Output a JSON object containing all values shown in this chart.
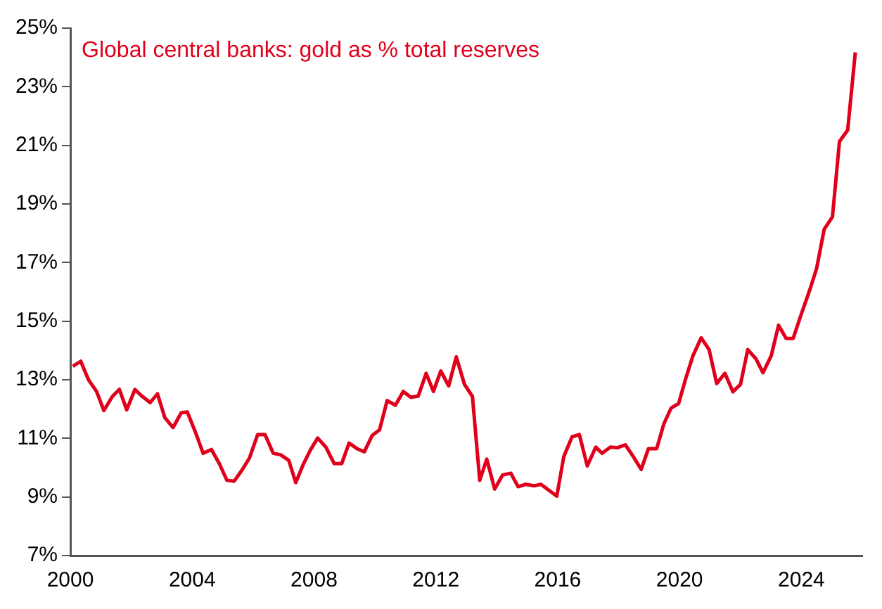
{
  "chart_data": {
    "type": "line",
    "title": "Global central banks: gold as % total reserves",
    "x": [
      2000.08,
      2000.34,
      2000.6,
      2000.86,
      2001.1,
      2001.38,
      2001.61,
      2001.85,
      2002.12,
      2002.35,
      2002.62,
      2002.86,
      2003.1,
      2003.37,
      2003.64,
      2003.84,
      2004.11,
      2004.36,
      2004.63,
      2004.89,
      2005.14,
      2005.38,
      2005.65,
      2005.88,
      2006.15,
      2006.39,
      2006.66,
      2006.9,
      2007.17,
      2007.4,
      2007.65,
      2007.89,
      2008.12,
      2008.39,
      2008.66,
      2008.91,
      2009.15,
      2009.41,
      2009.65,
      2009.91,
      2010.15,
      2010.4,
      2010.67,
      2010.93,
      2011.18,
      2011.42,
      2011.68,
      2011.92,
      2012.16,
      2012.42,
      2012.67,
      2012.94,
      2013.2,
      2013.44,
      2013.67,
      2013.93,
      2014.19,
      2014.46,
      2014.7,
      2014.95,
      2015.22,
      2015.45,
      2015.72,
      2015.97,
      2016.2,
      2016.47,
      2016.71,
      2016.97,
      2017.25,
      2017.46,
      2017.73,
      2017.96,
      2018.22,
      2018.48,
      2018.74,
      2018.98,
      2019.25,
      2019.48,
      2019.72,
      2019.97,
      2020.2,
      2020.44,
      2020.71,
      2020.97,
      2021.22,
      2021.49,
      2021.75,
      2022.0,
      2022.24,
      2022.51,
      2022.74,
      2023.01,
      2023.25,
      2023.5,
      2023.73,
      2024.0,
      2024.27,
      2024.5,
      2024.75,
      2025.02,
      2025.25,
      2025.52,
      2025.77
    ],
    "series": [
      {
        "color": "#e0001b",
        "values": [
          13.46,
          13.63,
          12.99,
          12.6,
          11.95,
          12.43,
          12.67,
          11.97,
          12.67,
          12.44,
          12.22,
          12.52,
          11.71,
          11.37,
          11.87,
          11.9,
          11.2,
          10.49,
          10.62,
          10.14,
          9.57,
          9.54,
          9.94,
          10.33,
          11.13,
          11.13,
          10.49,
          10.44,
          10.25,
          9.49,
          10.12,
          10.62,
          11.01,
          10.7,
          10.14,
          10.14,
          10.84,
          10.65,
          10.54,
          11.1,
          11.29,
          12.29,
          12.13,
          12.6,
          12.4,
          12.44,
          13.22,
          12.6,
          13.3,
          12.79,
          13.78,
          12.84,
          12.43,
          9.57,
          10.29,
          9.27,
          9.75,
          9.81,
          9.35,
          9.43,
          9.38,
          9.43,
          9.22,
          9.03,
          10.38,
          11.05,
          11.13,
          10.06,
          10.7,
          10.49,
          10.7,
          10.68,
          10.78,
          10.38,
          9.94,
          10.65,
          10.65,
          11.48,
          12.03,
          12.19,
          13.03,
          13.82,
          14.43,
          14.03,
          12.87,
          13.22,
          12.59,
          12.84,
          14.03,
          13.71,
          13.24,
          13.82,
          14.86,
          14.41,
          14.41,
          15.25,
          16.05,
          16.8,
          18.14,
          18.56,
          21.13,
          21.52,
          24.17
        ]
      }
    ],
    "xlim": [
      2000,
      2026
    ],
    "xticks": [
      2000,
      2004,
      2008,
      2012,
      2016,
      2020,
      2024
    ],
    "ylim": [
      7,
      25
    ],
    "yticks": [
      {
        "value": 7,
        "label": "7%"
      },
      {
        "value": 9,
        "label": "9%"
      },
      {
        "value": 11,
        "label": "11%"
      },
      {
        "value": 13,
        "label": "13%"
      },
      {
        "value": 15,
        "label": "15%"
      },
      {
        "value": 17,
        "label": "17%"
      },
      {
        "value": 19,
        "label": "19%"
      },
      {
        "value": 21,
        "label": "21%"
      },
      {
        "value": 23,
        "label": "23%"
      },
      {
        "value": 25,
        "label": "25%"
      }
    ],
    "grid": false,
    "legend": false,
    "marker": "none",
    "line_style": "solid"
  }
}
